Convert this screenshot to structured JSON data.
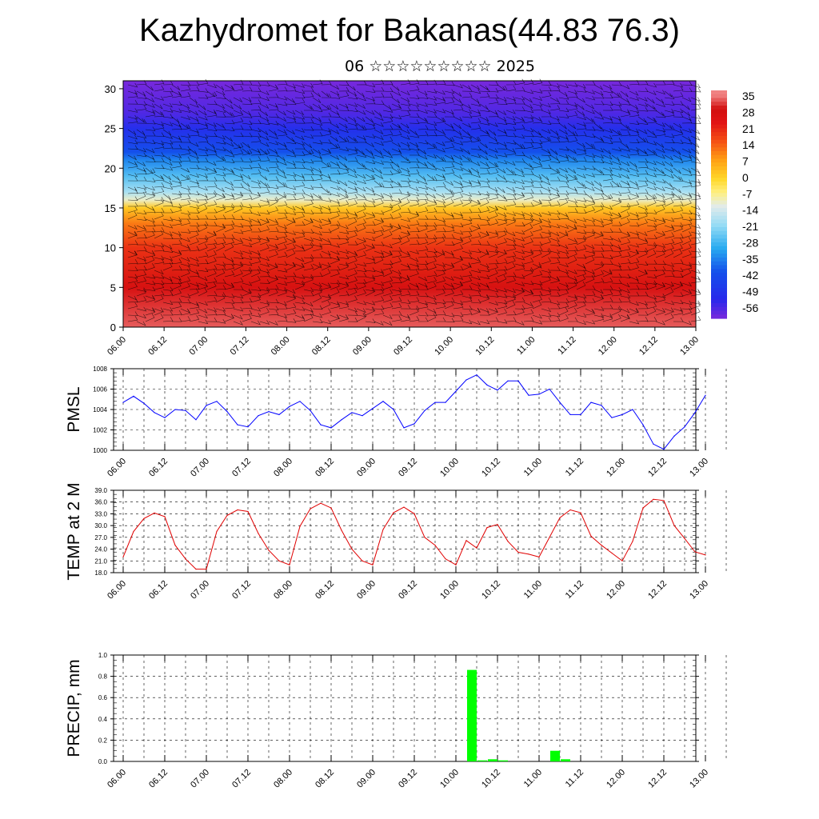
{
  "header": {
    "title": "Kazhydromet for Bakanas(44.83 76.3)",
    "subtitle": "06 ☆☆☆☆☆☆☆☆☆ 2025"
  },
  "time_ticks": [
    "06.00",
    "06.12",
    "07.00",
    "07.12",
    "08.00",
    "08.12",
    "09.00",
    "09.12",
    "10.00",
    "10.12",
    "11.00",
    "11.12",
    "12.00",
    "12.12",
    "13.00"
  ],
  "colors": {
    "pmsl_line": "#0000ff",
    "temp_line": "#e00000",
    "precip_bar": "#00ff00",
    "grid": "#000000"
  },
  "chart_data": [
    {
      "type": "heatmap",
      "name": "wind-temperature cross section",
      "xlabel": "",
      "ylabel": "",
      "ylim": [
        0,
        31
      ],
      "y_ticks": [
        "0",
        "5",
        "10",
        "15",
        "20",
        "25",
        "30"
      ],
      "colorbar": {
        "labels": [
          "35",
          "28",
          "21",
          "14",
          "7",
          "0",
          "-7",
          "-14",
          "-21",
          "-28",
          "-35",
          "-42",
          "-49",
          "-56"
        ],
        "range": [
          -60,
          38
        ]
      },
      "temperature_profile": {
        "levels": [
          0,
          5,
          10,
          13,
          15,
          16,
          17,
          19,
          21,
          22,
          25,
          27,
          31
        ],
        "values": [
          34,
          28,
          20,
          12,
          2,
          -10,
          -18,
          -26,
          -34,
          -40,
          -50,
          -56,
          -60
        ]
      },
      "overlay": "wind barbs"
    },
    {
      "type": "line",
      "ylabel": "PMSL",
      "ylim": [
        1000,
        1008
      ],
      "y_ticks": [
        "1008",
        "1006",
        "1004",
        "1002",
        "1000"
      ],
      "series": [
        {
          "values": [
            1004.7,
            1005.3,
            1004.6,
            1003.7,
            1003.2,
            1004.0,
            1003.9,
            1003.0,
            1004.4,
            1004.8,
            1003.8,
            1002.5,
            1002.3,
            1003.4,
            1003.8,
            1003.5,
            1004.3,
            1004.8,
            1003.9,
            1002.5,
            1002.2,
            1003.0,
            1003.7,
            1003.4,
            1004.1,
            1004.8,
            1004.0,
            1002.2,
            1002.6,
            1003.9,
            1004.7,
            1004.7,
            1005.8,
            1006.9,
            1007.4,
            1006.4,
            1005.9,
            1006.8,
            1006.8,
            1005.4,
            1005.5,
            1006.0,
            1004.7,
            1003.5,
            1003.5,
            1004.7,
            1004.4,
            1003.2,
            1003.5,
            1004.0,
            1002.5,
            1000.6,
            1000.1,
            1001.4,
            1002.3,
            1003.7,
            1005.4
          ]
        }
      ]
    },
    {
      "type": "line",
      "ylabel": "TEMP at 2 M",
      "ylim": [
        18,
        39
      ],
      "y_ticks": [
        "39.0",
        "36.0",
        "33.0",
        "30.0",
        "27.0",
        "24.0",
        "21.0",
        "18.0"
      ],
      "series": [
        {
          "values": [
            22.0,
            28.5,
            31.8,
            33.2,
            32.3,
            25.0,
            21.5,
            18.9,
            18.9,
            28.5,
            32.6,
            34.0,
            33.6,
            28.0,
            23.7,
            21.0,
            20.0,
            29.8,
            34.3,
            35.7,
            34.5,
            28.8,
            24.0,
            21.0,
            20.0,
            29.0,
            33.3,
            34.7,
            33.0,
            27.0,
            25.0,
            21.5,
            20.0,
            26.2,
            24.3,
            29.5,
            30.3,
            26.0,
            23.2,
            22.7,
            22.0,
            27.0,
            32.0,
            34.0,
            33.3,
            27.3,
            25.0,
            23.0,
            21.0,
            26.0,
            34.5,
            36.7,
            36.4,
            30.0,
            26.7,
            23.3,
            22.5
          ]
        }
      ]
    },
    {
      "type": "bar",
      "ylabel": "PRECIP, mm",
      "ylim": [
        0,
        1
      ],
      "y_ticks": [
        "1.0",
        "0.8",
        "0.6",
        "0.4",
        "0.2",
        "0.0"
      ],
      "bars": [
        {
          "x": 34,
          "value": 0.86
        },
        {
          "x": 35,
          "value": 0.01
        },
        {
          "x": 36,
          "value": 0.02
        },
        {
          "x": 37,
          "value": 0.01
        },
        {
          "x": 42,
          "value": 0.1
        },
        {
          "x": 43,
          "value": 0.02
        }
      ]
    }
  ]
}
